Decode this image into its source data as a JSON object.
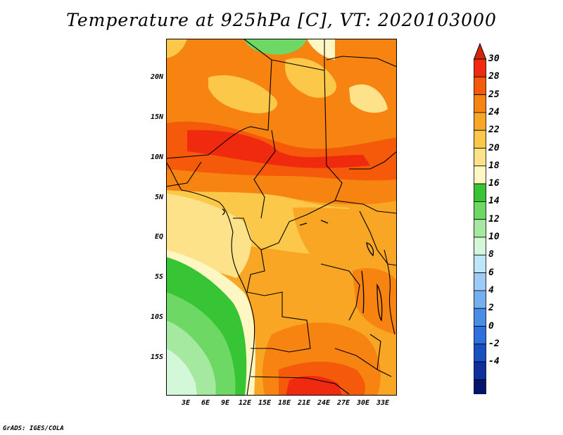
{
  "title": "Temperature at 925hPa [C], VT: 2020103000",
  "lat_labels": [
    "20N",
    "15N",
    "10N",
    "5N",
    "EQ",
    "5S",
    "10S",
    "15S"
  ],
  "lon_labels": [
    "3E",
    "6E",
    "9E",
    "12E",
    "15E",
    "18E",
    "21E",
    "24E",
    "27E",
    "30E",
    "33E"
  ],
  "colorbar": {
    "labels": [
      "30",
      "28",
      "25",
      "24",
      "22",
      "20",
      "18",
      "16",
      "14",
      "12",
      "10",
      "8",
      "6",
      "4",
      "2",
      "0",
      "-2",
      "-4"
    ],
    "colors": [
      "#f02a0f",
      "#f55a0a",
      "#f78310",
      "#f9a624",
      "#fbc84a",
      "#fde28a",
      "#fff7c3",
      "#37c535",
      "#6ed864",
      "#a5e9a0",
      "#d2f7d9",
      "#bde5fb",
      "#9ecbf6",
      "#74aff0",
      "#4a8de7",
      "#2d6fdc",
      "#1a4fc4",
      "#0e2f9c",
      "#07146b"
    ],
    "top_arrow_color": "#d4250b",
    "bottom_arrow_color": "#dad7f3"
  },
  "credit": "GrADS: IGES/COLA"
}
